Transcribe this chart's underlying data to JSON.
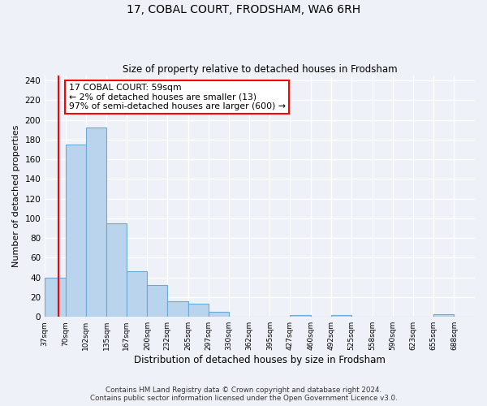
{
  "title1": "17, COBAL COURT, FRODSHAM, WA6 6RH",
  "title2": "Size of property relative to detached houses in Frodsham",
  "xlabel": "Distribution of detached houses by size in Frodsham",
  "ylabel": "Number of detached properties",
  "bin_edges": [
    37,
    70,
    102,
    135,
    167,
    200,
    232,
    265,
    297,
    330,
    362,
    395,
    427,
    460,
    492,
    525,
    558,
    590,
    623,
    655,
    688
  ],
  "bar_heights": [
    40,
    175,
    192,
    95,
    46,
    32,
    16,
    13,
    5,
    0,
    0,
    0,
    2,
    0,
    2,
    0,
    0,
    0,
    0,
    3,
    0
  ],
  "bar_color": "#bad4ee",
  "bar_edge_color": "#6aaad4",
  "property_value": 59,
  "annotation_title": "17 COBAL COURT: 59sqm",
  "annotation_line1": "← 2% of detached houses are smaller (13)",
  "annotation_line2": "97% of semi-detached houses are larger (600) →",
  "annotation_box_color": "white",
  "annotation_box_edge_color": "red",
  "marker_line_color": "red",
  "ylim": [
    0,
    245
  ],
  "yticks": [
    0,
    20,
    40,
    60,
    80,
    100,
    120,
    140,
    160,
    180,
    200,
    220,
    240
  ],
  "footer_line1": "Contains HM Land Registry data © Crown copyright and database right 2024.",
  "footer_line2": "Contains public sector information licensed under the Open Government Licence v3.0.",
  "background_color": "#eef2f8"
}
